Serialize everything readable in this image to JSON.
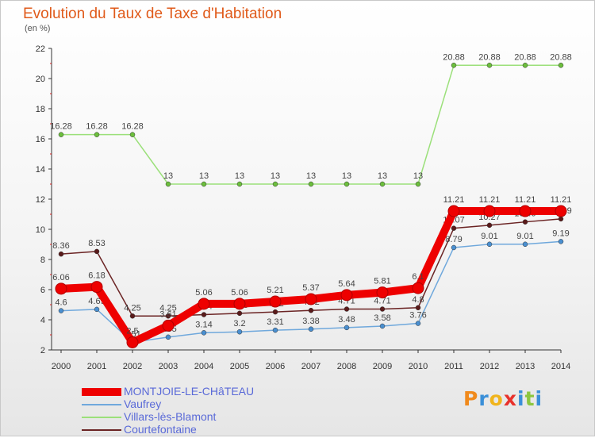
{
  "chart_data": {
    "type": "line",
    "title": "Evolution du Taux de Taxe d'Habitation",
    "subtitle": "(en %)",
    "x": [
      "2000",
      "2001",
      "2002",
      "2003",
      "2004",
      "2005",
      "2006",
      "2007",
      "2008",
      "2009",
      "2010",
      "2011",
      "2012",
      "2013",
      "2014"
    ],
    "ylim": [
      2,
      22
    ],
    "yticks": [
      2,
      4,
      6,
      8,
      10,
      12,
      14,
      16,
      18,
      20,
      22
    ],
    "grid": false,
    "legend_position": "bottom-left",
    "series": [
      {
        "name": "Villars-lès-Blamont",
        "color": "#9be07a",
        "marker_color": "#6cbf3c",
        "values": [
          16.28,
          16.28,
          16.28,
          13,
          13,
          13,
          13,
          13,
          13,
          13,
          13,
          20.88,
          20.88,
          20.88,
          20.88
        ],
        "labels": [
          "16.28",
          "16.28",
          "16.28",
          "13",
          "13",
          "13",
          "13",
          "13",
          "13",
          "13",
          "13",
          "20.88",
          "20.88",
          "20.88",
          "20.88"
        ]
      },
      {
        "name": "Courtefontaine",
        "color": "#6b2424",
        "marker_color": "#5a1a1a",
        "values": [
          8.36,
          8.53,
          4.25,
          4.25,
          4.34,
          4.43,
          4.52,
          4.62,
          4.71,
          4.71,
          4.8,
          10.07,
          10.27,
          10.49,
          10.69
        ],
        "labels": [
          "8.36",
          "8.53",
          "4.25",
          "4.25",
          "4.34",
          "4.43",
          "4.52",
          "4.62",
          "4.71",
          "4.71",
          "4.8",
          "10.07",
          "10.27",
          "10.49",
          "10.69"
        ]
      },
      {
        "name": "Vaufrey",
        "color": "#6fa8dc",
        "marker_color": "#4a8fd0",
        "values": [
          4.6,
          4.69,
          2.51,
          2.85,
          3.14,
          3.2,
          3.31,
          3.38,
          3.48,
          3.58,
          3.76,
          8.79,
          9.01,
          9.01,
          9.19
        ],
        "labels": [
          "4.6",
          "4.69",
          "2.51",
          "2.85",
          "3.14",
          "3.2",
          "3.31",
          "3.38",
          "3.48",
          "3.58",
          "3.76",
          "8.79",
          "9.01",
          "9.01",
          "9.19"
        ]
      },
      {
        "name": "MONTJOIE-LE-CHâTEAU",
        "color": "#ee0000",
        "marker_color": "#ee0000",
        "values": [
          6.06,
          6.18,
          2.5,
          3.61,
          5.06,
          5.06,
          5.21,
          5.37,
          5.64,
          5.81,
          6.1,
          11.21,
          11.21,
          11.21,
          11.21
        ],
        "labels": [
          "6.06",
          "6.18",
          "2.5",
          "3.61",
          "5.06",
          "5.06",
          "5.21",
          "5.37",
          "5.64",
          "5.81",
          "6.1",
          "11.21",
          "11.21",
          "11.21",
          "11.21"
        ]
      }
    ]
  },
  "legend": [
    {
      "label": "MONTJOIE-LE-CHâTEAU",
      "color": "#ee0000",
      "text_color": "#5a6ad8",
      "thick": true
    },
    {
      "label": "Vaufrey",
      "color": "#6fa8dc",
      "text_color": "#5a6ad8",
      "thick": false
    },
    {
      "label": "Villars-lès-Blamont",
      "color": "#9be07a",
      "text_color": "#5a6ad8",
      "thick": false
    },
    {
      "label": "Courtefontaine",
      "color": "#6b2424",
      "text_color": "#5a6ad8",
      "thick": false
    }
  ],
  "logo": {
    "letters": [
      "P",
      "r",
      "o",
      "x",
      "i",
      "t",
      "i"
    ],
    "colors": [
      "#f08a1c",
      "#3a8fd8",
      "#f0b41c",
      "#e8322c",
      "#3a8fd8",
      "#8cc63f",
      "#3a8fd8"
    ]
  }
}
